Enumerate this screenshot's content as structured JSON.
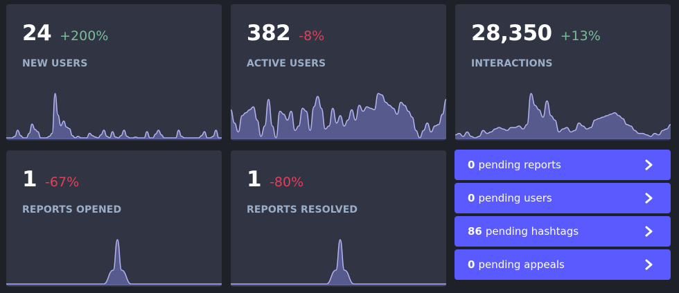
{
  "metrics": [
    {
      "value": "24",
      "delta": "+200%",
      "trend": "up",
      "label": "NEW USERS",
      "spark": [
        0,
        0,
        0,
        2,
        10,
        3,
        0,
        0,
        6,
        18,
        11,
        8,
        0,
        0,
        0,
        2,
        6,
        58,
        30,
        16,
        22,
        14,
        12,
        3,
        0,
        2,
        0,
        0,
        0,
        6,
        3,
        1,
        0,
        4,
        10,
        2,
        0,
        8,
        1,
        0,
        3,
        10,
        2,
        0,
        0,
        1,
        0,
        0,
        0,
        8,
        0,
        0,
        5,
        10,
        4,
        0,
        0,
        0,
        0,
        0,
        10,
        2,
        0,
        0,
        0,
        0,
        0,
        0,
        3,
        8,
        0,
        0,
        2,
        10,
        0,
        0
      ]
    },
    {
      "value": "382",
      "delta": "-8%",
      "trend": "down",
      "label": "ACTIVE USERS",
      "spark": [
        38,
        20,
        8,
        30,
        34,
        38,
        42,
        24,
        2,
        16,
        52,
        16,
        0,
        36,
        32,
        24,
        36,
        10,
        16,
        40,
        36,
        10,
        42,
        56,
        40,
        12,
        16,
        40,
        20,
        30,
        16,
        24,
        38,
        24,
        44,
        36,
        42,
        40,
        38,
        60,
        58,
        48,
        44,
        40,
        32,
        48,
        44,
        36,
        28,
        10,
        0,
        10,
        20,
        8,
        16,
        18,
        32,
        52
      ]
    },
    {
      "value": "28,350",
      "delta": "+13%",
      "trend": "up",
      "label": "INTERACTIONS",
      "spark": [
        4,
        6,
        2,
        8,
        2,
        0,
        2,
        10,
        6,
        8,
        12,
        14,
        12,
        10,
        14,
        14,
        16,
        12,
        18,
        60,
        44,
        38,
        28,
        50,
        30,
        24,
        8,
        12,
        14,
        8,
        10,
        20,
        16,
        12,
        14,
        24,
        26,
        28,
        30,
        32,
        34,
        30,
        26,
        18,
        16,
        10,
        6,
        6,
        4,
        2,
        6,
        4,
        10,
        12,
        18
      ]
    },
    {
      "value": "1",
      "delta": "-67%",
      "trend": "down",
      "label": "REPORTS OPENED",
      "spark_peak": 0.516
    },
    {
      "value": "1",
      "delta": "-80%",
      "trend": "down",
      "label": "REPORTS RESOLVED",
      "spark_peak": 0.508
    }
  ],
  "pending": [
    {
      "count": "0",
      "text": "pending reports",
      "icon": "chevron-right-icon"
    },
    {
      "count": "0",
      "text": "pending users",
      "icon": "chevron-right-icon"
    },
    {
      "count": "86",
      "text": "pending hashtags",
      "icon": "chevron-right-icon"
    },
    {
      "count": "0",
      "text": "pending appeals",
      "icon": "chevron-right-icon"
    }
  ],
  "colors": {
    "background": "#1f2128",
    "card": "#313543",
    "positive": "#79bd9a",
    "negative": "#df405a",
    "label": "#9baec8",
    "accent": "#595aff",
    "spark_fill": "#565a8c",
    "spark_line": "#b6b4f4"
  }
}
